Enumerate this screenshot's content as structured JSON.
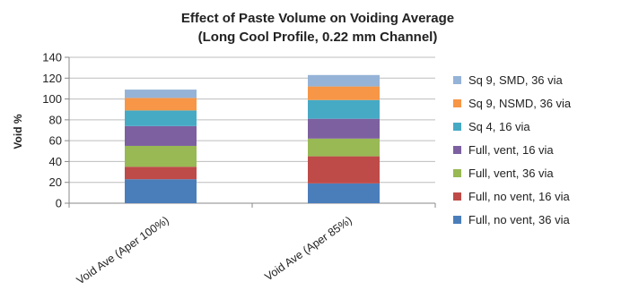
{
  "chart_data": {
    "type": "bar",
    "stacked": true,
    "title": "Effect of Paste Volume on Voiding Average",
    "subtitle": "(Long Cool Profile, 0.22 mm Channel)",
    "ylabel": "Void %",
    "xlabel": "",
    "ylim": [
      0,
      140
    ],
    "yticks": [
      0,
      20,
      40,
      60,
      80,
      100,
      120,
      140
    ],
    "grid": true,
    "legend": "right",
    "categories": [
      "Void Ave (Aper 100%)",
      "Void Ave (Aper 85%)"
    ],
    "series": [
      {
        "name": "Full, no vent, 36 via",
        "color": "#4a7ebb",
        "values": [
          23,
          19
        ]
      },
      {
        "name": "Full, no vent, 16 via",
        "color": "#be4b48",
        "values": [
          12,
          26
        ]
      },
      {
        "name": "Full, vent, 36 via",
        "color": "#98b954",
        "values": [
          20,
          17
        ]
      },
      {
        "name": "Full, vent, 16 via",
        "color": "#7d60a0",
        "values": [
          19,
          19
        ]
      },
      {
        "name": "Sq 4, 16 via",
        "color": "#46aac5",
        "values": [
          15,
          18
        ]
      },
      {
        "name": "Sq 9, NSMD, 36 via",
        "color": "#f79646",
        "values": [
          12,
          13
        ]
      },
      {
        "name": "Sq 9, SMD, 36 via",
        "color": "#95b3d7",
        "values": [
          8,
          11
        ]
      }
    ]
  }
}
